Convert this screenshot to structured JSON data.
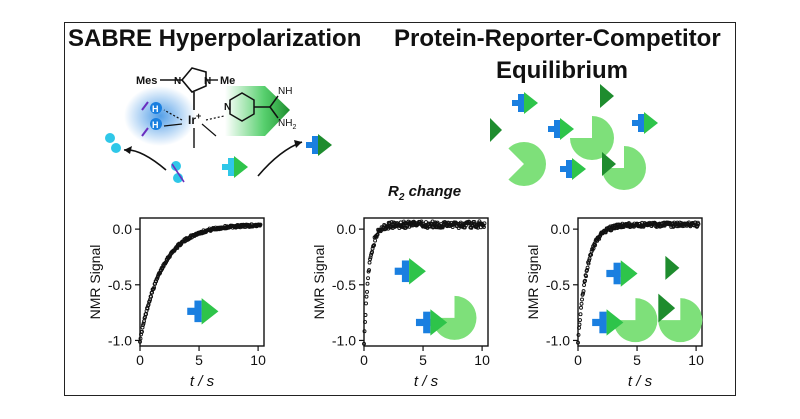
{
  "titles": {
    "left": "SABRE Hyperpolarization",
    "right_line1": "Protein-Reporter-Competitor",
    "right_line2": "Equilibrium"
  },
  "middle_label": {
    "main": "R",
    "sub": "2",
    "rest": " change"
  },
  "catalyst": {
    "mes": "Mes",
    "me": "Me",
    "n1": "N",
    "n2": "N",
    "ir": "Ir",
    "ir_charge": "+",
    "pyridine_n": "N",
    "nh": "NH",
    "nh2": "NH",
    "nh2_sub": "2",
    "h1": "H",
    "h2": "H"
  },
  "colors": {
    "green_dark": "#1e8c2e",
    "green_light": "#2ec44a",
    "blue_arrow": "#1a7fe0",
    "cyan": "#2fc7e8",
    "protein": "#7ee07a"
  },
  "chart_data": [
    {
      "type": "scatter",
      "title": "",
      "xlabel": "t / s",
      "ylabel": "NMR Signal",
      "xlim": [
        0,
        10.5
      ],
      "ylim": [
        -1.05,
        0.1
      ],
      "xticks": [
        0,
        5,
        10
      ],
      "yticks": [
        0.0,
        -0.5,
        -1.0
      ],
      "ytick_labels": [
        "0.0",
        "-0.5",
        "-1.0"
      ],
      "model": {
        "form": "exponential_recovery",
        "tau": 1.9,
        "noise": 0.012
      },
      "inset": "reporter"
    },
    {
      "type": "scatter",
      "title": "",
      "xlabel": "t / s",
      "ylabel": "NMR Signal",
      "xlim": [
        0,
        10.5
      ],
      "ylim": [
        -1.05,
        0.1
      ],
      "xticks": [
        0,
        5,
        10
      ],
      "yticks": [
        0.0,
        -0.5,
        -1.0
      ],
      "ytick_labels": [
        "0.0",
        "-0.5",
        "-1.0"
      ],
      "model": {
        "form": "exponential_recovery",
        "tau": 0.45,
        "noise": 0.03
      },
      "inset": "reporter_protein"
    },
    {
      "type": "scatter",
      "title": "",
      "xlabel": "t / s",
      "ylabel": "NMR Signal",
      "xlim": [
        0,
        10.5
      ],
      "ylim": [
        -1.05,
        0.1
      ],
      "xticks": [
        0,
        5,
        10
      ],
      "yticks": [
        0.0,
        -0.5,
        -1.0
      ],
      "ytick_labels": [
        "0.0",
        "-0.5",
        "-1.0"
      ],
      "model": {
        "form": "exponential_recovery",
        "tau": 0.8,
        "noise": 0.02
      },
      "inset": "reporter_competitor_protein"
    }
  ]
}
